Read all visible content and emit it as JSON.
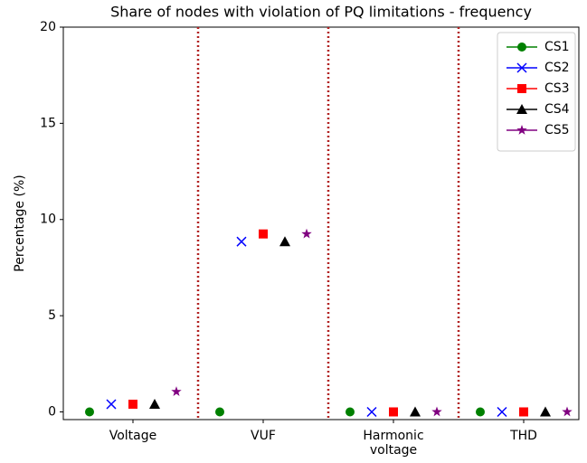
{
  "chart_data": {
    "type": "scatter",
    "title": "Share of nodes with violation of PQ limitations - frequency",
    "ylabel": "Percentage (%)",
    "categories": [
      "Voltage",
      "VUF",
      "Harmonic voltage",
      "THD"
    ],
    "series": [
      {
        "name": "CS1",
        "color": "#008000",
        "marker": "circle",
        "values": [
          0,
          0,
          0,
          0
        ]
      },
      {
        "name": "CS2",
        "color": "#0000ff",
        "marker": "x",
        "values": [
          0.4,
          8.85,
          0,
          0
        ]
      },
      {
        "name": "CS3",
        "color": "#ff0000",
        "marker": "square",
        "values": [
          0.4,
          9.25,
          0,
          0
        ]
      },
      {
        "name": "CS4",
        "color": "#000000",
        "marker": "triangle",
        "values": [
          0.4,
          8.85,
          0,
          0
        ]
      },
      {
        "name": "CS5",
        "color": "#800080",
        "marker": "star",
        "values": [
          1.05,
          9.25,
          0,
          0
        ]
      }
    ],
    "ylim": [
      -0.4,
      20
    ],
    "yticks": [
      0,
      5,
      10,
      15,
      20
    ],
    "legend": "upper right"
  }
}
